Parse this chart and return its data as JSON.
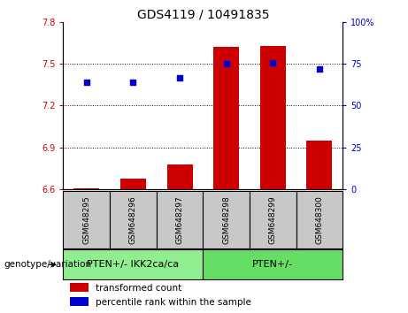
{
  "title": "GDS4119 / 10491835",
  "samples": [
    "GSM648295",
    "GSM648296",
    "GSM648297",
    "GSM648298",
    "GSM648299",
    "GSM648300"
  ],
  "bar_values": [
    6.61,
    6.68,
    6.78,
    7.62,
    7.63,
    6.95
  ],
  "scatter_values_left": [
    7.37,
    7.37,
    7.4,
    7.5,
    7.51,
    7.46
  ],
  "bar_base": 6.6,
  "ylim_left": [
    6.6,
    7.8
  ],
  "ylim_right": [
    0,
    100
  ],
  "yticks_left": [
    6.6,
    6.9,
    7.2,
    7.5,
    7.8
  ],
  "yticks_right": [
    0,
    25,
    50,
    75,
    100
  ],
  "bar_color": "#cc0000",
  "scatter_color": "#0000cc",
  "groups": [
    {
      "label": "PTEN+/- IKK2ca/ca",
      "indices": [
        0,
        1,
        2
      ],
      "color": "#90ee90"
    },
    {
      "label": "PTEN+/-",
      "indices": [
        3,
        4,
        5
      ],
      "color": "#66dd66"
    }
  ],
  "legend_items": [
    {
      "color": "#cc0000",
      "label": "transformed count"
    },
    {
      "color": "#0000cc",
      "label": "percentile rank within the sample"
    }
  ],
  "tick_label_bg": "#c8c8c8",
  "genotype_label": "genotype/variation",
  "right_ytick_labels": [
    "0",
    "25",
    "50",
    "75",
    "100%"
  ],
  "title_fontsize": 10,
  "tick_fontsize": 7,
  "label_fontsize": 7.5,
  "legend_fontsize": 7.5,
  "sample_fontsize": 6.5,
  "group_fontsize": 8
}
